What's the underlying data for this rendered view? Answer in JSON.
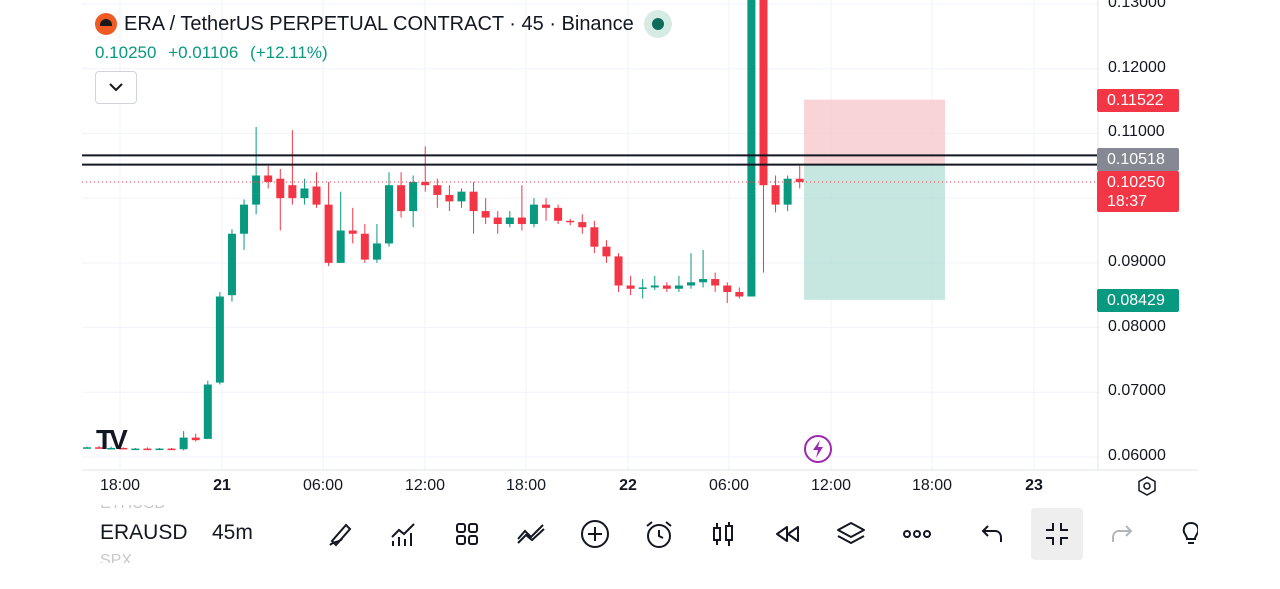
{
  "header": {
    "title": "ERA / TetherUS PERPETUAL CONTRACT · 45 · Binance",
    "price": "0.10250",
    "change": "+0.01106",
    "change_pct": "(+12.11%)"
  },
  "tags": {
    "stop": "0.11522",
    "line": "0.10518",
    "last_price": "0.10250",
    "countdown": "18:37",
    "target": "0.08429"
  },
  "colors": {
    "up": "#089981",
    "down": "#f23645",
    "stop_zone": "#f7c5c9",
    "target_zone": "#b2dfd6",
    "tag_gray": "#868993"
  },
  "chart_data": {
    "type": "candlestick",
    "title": "ERA / TetherUS PERPETUAL CONTRACT · 45 · Binance",
    "ylim": [
      0.058,
      0.131
    ],
    "y_ticks": [
      "0.06000",
      "0.07000",
      "0.08000",
      "0.09000",
      "0.11000",
      "0.12000",
      "0.13000"
    ],
    "x_ticks": [
      {
        "label": "18:00",
        "bold": false
      },
      {
        "label": "21",
        "bold": true
      },
      {
        "label": "06:00",
        "bold": false
      },
      {
        "label": "12:00",
        "bold": false
      },
      {
        "label": "18:00",
        "bold": false
      },
      {
        "label": "22",
        "bold": true
      },
      {
        "label": "06:00",
        "bold": false
      },
      {
        "label": "12:00",
        "bold": false
      },
      {
        "label": "18:00",
        "bold": false
      },
      {
        "label": "23",
        "bold": true
      }
    ],
    "horizontal_lines": [
      0.1066,
      0.10518
    ],
    "last_price": 0.1025,
    "position": {
      "entry": 0.10518,
      "stop": 0.11522,
      "target": 0.08429
    },
    "candles": [
      [
        0.0615,
        0.0616,
        0.0614,
        0.0615
      ],
      [
        0.0615,
        0.0617,
        0.0614,
        0.0614
      ],
      [
        0.0614,
        0.0616,
        0.0613,
        0.0614
      ],
      [
        0.0614,
        0.0615,
        0.0612,
        0.0613
      ],
      [
        0.0613,
        0.0614,
        0.0612,
        0.0613
      ],
      [
        0.0613,
        0.0615,
        0.0611,
        0.0612
      ],
      [
        0.0612,
        0.0614,
        0.0611,
        0.0613
      ],
      [
        0.0613,
        0.0614,
        0.0611,
        0.0612
      ],
      [
        0.0612,
        0.064,
        0.061,
        0.063
      ],
      [
        0.063,
        0.0636,
        0.0624,
        0.0626
      ],
      [
        0.0628,
        0.0718,
        0.0628,
        0.0712
      ],
      [
        0.0715,
        0.0855,
        0.0712,
        0.0848
      ],
      [
        0.085,
        0.0952,
        0.084,
        0.0945
      ],
      [
        0.0945,
        0.0998,
        0.092,
        0.099
      ],
      [
        0.099,
        0.111,
        0.0975,
        0.1035
      ],
      [
        0.1035,
        0.105,
        0.1015,
        0.1025
      ],
      [
        0.103,
        0.1045,
        0.095,
        0.1
      ],
      [
        0.102,
        0.1105,
        0.099,
        0.1
      ],
      [
        0.1,
        0.103,
        0.099,
        0.1015
      ],
      [
        0.1018,
        0.104,
        0.0985,
        0.099
      ],
      [
        0.099,
        0.1025,
        0.0895,
        0.09
      ],
      [
        0.09,
        0.101,
        0.09,
        0.095
      ],
      [
        0.095,
        0.0985,
        0.093,
        0.0945
      ],
      [
        0.0945,
        0.096,
        0.09,
        0.0905
      ],
      [
        0.0905,
        0.096,
        0.09,
        0.093
      ],
      [
        0.093,
        0.104,
        0.0925,
        0.102
      ],
      [
        0.102,
        0.104,
        0.097,
        0.098
      ],
      [
        0.098,
        0.1035,
        0.0955,
        0.1025
      ],
      [
        0.1025,
        0.108,
        0.101,
        0.102
      ],
      [
        0.102,
        0.103,
        0.0985,
        0.1005
      ],
      [
        0.1005,
        0.102,
        0.098,
        0.0995
      ],
      [
        0.0995,
        0.1015,
        0.0985,
        0.101
      ],
      [
        0.101,
        0.1025,
        0.0945,
        0.098
      ],
      [
        0.098,
        0.1,
        0.096,
        0.097
      ],
      [
        0.097,
        0.098,
        0.0945,
        0.096
      ],
      [
        0.096,
        0.098,
        0.0955,
        0.097
      ],
      [
        0.097,
        0.102,
        0.095,
        0.096
      ],
      [
        0.096,
        0.1,
        0.0955,
        0.099
      ],
      [
        0.099,
        0.1,
        0.0965,
        0.0985
      ],
      [
        0.0985,
        0.099,
        0.096,
        0.0965
      ],
      [
        0.0965,
        0.0968,
        0.0958,
        0.0963
      ],
      [
        0.0963,
        0.0975,
        0.0945,
        0.0955
      ],
      [
        0.0955,
        0.0965,
        0.0915,
        0.0925
      ],
      [
        0.0925,
        0.0935,
        0.09,
        0.091
      ],
      [
        0.091,
        0.0915,
        0.0855,
        0.0865
      ],
      [
        0.0865,
        0.088,
        0.085,
        0.086
      ],
      [
        0.086,
        0.0875,
        0.0845,
        0.0862
      ],
      [
        0.0862,
        0.088,
        0.0858,
        0.0865
      ],
      [
        0.0865,
        0.087,
        0.0855,
        0.086
      ],
      [
        0.086,
        0.088,
        0.0855,
        0.0865
      ],
      [
        0.0865,
        0.0915,
        0.086,
        0.087
      ],
      [
        0.087,
        0.092,
        0.0862,
        0.0875
      ],
      [
        0.0875,
        0.0885,
        0.0855,
        0.0865
      ],
      [
        0.0865,
        0.087,
        0.0838,
        0.0855
      ],
      [
        0.0855,
        0.0862,
        0.0845,
        0.0848
      ],
      [
        0.0848,
        0.135,
        0.0848,
        0.132
      ],
      [
        0.132,
        0.135,
        0.0885,
        0.102
      ],
      [
        0.102,
        0.1035,
        0.0978,
        0.099
      ],
      [
        0.099,
        0.1035,
        0.098,
        0.103
      ],
      [
        0.103,
        0.105,
        0.1015,
        0.1025
      ]
    ]
  },
  "toolbar": {
    "symbol": "ERAUSD",
    "interval": "45m",
    "ghost_above": "ETHUSD",
    "ghost_below": "SPX"
  }
}
